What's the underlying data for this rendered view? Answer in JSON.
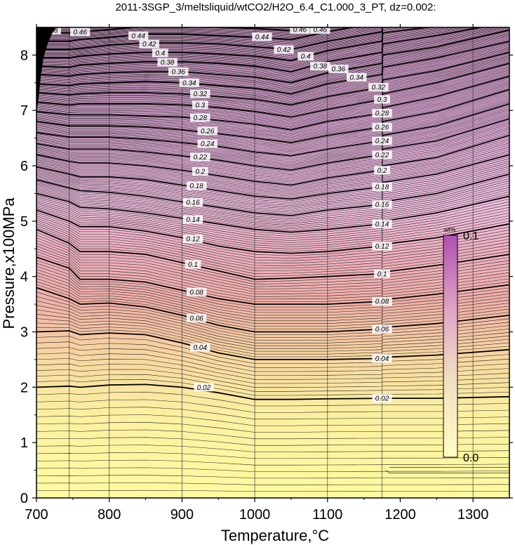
{
  "chart_data": {
    "type": "contour",
    "title": "2011-3SGP_3/meltsliquid/wtCO2/H2O_6.4_C1.000_3_PT, dz=0.002:",
    "xlabel": "Temperature,°C",
    "ylabel": "Pressure,x100MPa",
    "xlim": [
      700,
      1350
    ],
    "ylim": [
      0,
      8.5
    ],
    "xticks": [
      700,
      800,
      900,
      1000,
      1100,
      1200,
      1300
    ],
    "yticks": [
      0,
      1,
      2,
      3,
      4,
      5,
      6,
      7,
      8
    ],
    "xtick_labels": [
      "700",
      "800",
      "900",
      "1000",
      "1100",
      "1200",
      "1300"
    ],
    "ytick_labels": [
      "0",
      "1",
      "2",
      "3",
      "4",
      "5",
      "6",
      "7",
      "8"
    ],
    "grid": true,
    "grid_x": [
      745,
      800,
      900,
      1000,
      1100,
      1175,
      1300
    ],
    "contour_interval": 0.002,
    "major_interval": 0.02,
    "colorbar": {
      "title": "wt%",
      "min_label": "0.0",
      "max_label": "0.1",
      "range": [
        0.0,
        0.1
      ],
      "colors": [
        "#fffaa0",
        "#f2b8a8",
        "#d090c0",
        "#b060b0"
      ]
    },
    "profile_T": [
      700,
      745,
      760,
      800,
      850,
      900,
      950,
      1000,
      1050,
      1100,
      1175,
      1176,
      1250,
      1350
    ],
    "iso_lines": [
      {
        "value": 0.02,
        "P": [
          2.0,
          2.02,
          2.0,
          2.04,
          2.05,
          2.0,
          1.9,
          1.78,
          1.78,
          1.79,
          1.8,
          1.8,
          1.8,
          1.83
        ]
      },
      {
        "value": 0.04,
        "P": [
          3.0,
          3.02,
          2.95,
          2.98,
          2.95,
          2.8,
          2.62,
          2.5,
          2.5,
          2.5,
          2.52,
          2.54,
          2.58,
          2.68
        ]
      },
      {
        "value": 0.06,
        "P": [
          3.8,
          3.6,
          3.5,
          3.52,
          3.45,
          3.3,
          3.12,
          3.0,
          3.0,
          3.0,
          3.05,
          3.08,
          3.15,
          3.3
        ]
      },
      {
        "value": 0.08,
        "P": [
          4.35,
          4.15,
          3.95,
          3.95,
          3.9,
          3.75,
          3.6,
          3.5,
          3.5,
          3.5,
          3.55,
          3.58,
          3.68,
          3.85
        ]
      },
      {
        "value": 0.1,
        "P": [
          4.85,
          4.6,
          4.45,
          4.45,
          4.4,
          4.25,
          4.1,
          3.95,
          3.97,
          4.0,
          4.05,
          4.08,
          4.2,
          4.4
        ]
      },
      {
        "value": 0.12,
        "P": [
          5.2,
          5.0,
          4.9,
          4.9,
          4.82,
          4.7,
          4.55,
          4.45,
          4.42,
          4.45,
          4.55,
          4.58,
          4.7,
          4.95
        ]
      },
      {
        "value": 0.14,
        "P": [
          5.5,
          5.35,
          5.25,
          5.22,
          5.15,
          5.05,
          4.95,
          4.85,
          4.8,
          4.85,
          4.95,
          5.0,
          5.15,
          5.45
        ]
      },
      {
        "value": 0.16,
        "P": [
          5.75,
          5.6,
          5.55,
          5.52,
          5.45,
          5.35,
          5.25,
          5.15,
          5.1,
          5.2,
          5.3,
          5.35,
          5.5,
          5.85
        ]
      },
      {
        "value": 0.18,
        "P": [
          5.98,
          5.85,
          5.8,
          5.8,
          5.75,
          5.65,
          5.55,
          5.45,
          5.4,
          5.5,
          5.62,
          5.7,
          5.85,
          6.2
        ]
      },
      {
        "value": 0.2,
        "P": [
          6.2,
          6.08,
          6.05,
          6.05,
          6.0,
          5.92,
          5.82,
          5.72,
          5.65,
          5.78,
          5.92,
          6.0,
          6.15,
          6.55
        ]
      },
      {
        "value": 0.22,
        "P": [
          6.4,
          6.3,
          6.3,
          6.3,
          6.25,
          6.18,
          6.1,
          6.0,
          5.92,
          6.05,
          6.2,
          6.3,
          6.45,
          6.85
        ]
      },
      {
        "value": 0.24,
        "P": [
          6.6,
          6.52,
          6.52,
          6.52,
          6.48,
          6.42,
          6.35,
          6.25,
          6.18,
          6.3,
          6.45,
          6.55,
          6.72,
          7.12
        ]
      },
      {
        "value": 0.26,
        "P": [
          6.8,
          6.72,
          6.72,
          6.72,
          6.7,
          6.65,
          6.58,
          6.5,
          6.42,
          6.55,
          6.7,
          6.8,
          6.98,
          7.38
        ]
      },
      {
        "value": 0.28,
        "P": [
          6.98,
          6.92,
          6.92,
          6.92,
          6.9,
          6.88,
          6.82,
          6.75,
          6.65,
          6.8,
          6.95,
          7.05,
          7.25,
          7.62
        ]
      },
      {
        "value": 0.3,
        "P": [
          7.15,
          7.1,
          7.12,
          7.12,
          7.12,
          7.1,
          7.05,
          6.98,
          6.88,
          7.02,
          7.2,
          7.3,
          7.5,
          7.85
        ]
      },
      {
        "value": 0.32,
        "P": [
          7.32,
          7.28,
          7.3,
          7.32,
          7.32,
          7.3,
          7.25,
          7.2,
          7.1,
          7.25,
          7.42,
          7.55,
          7.72,
          8.05
        ]
      },
      {
        "value": 0.34,
        "P": [
          7.48,
          7.45,
          7.48,
          7.5,
          7.52,
          7.5,
          7.45,
          7.4,
          7.3,
          7.48,
          7.65,
          7.78,
          7.95,
          8.25
        ]
      },
      {
        "value": 0.36,
        "P": [
          7.65,
          7.62,
          7.65,
          7.68,
          7.7,
          7.7,
          7.65,
          7.6,
          7.5,
          7.68,
          7.85,
          8.0,
          8.15,
          8.45
        ]
      },
      {
        "value": 0.38,
        "P": [
          7.8,
          7.78,
          7.82,
          7.85,
          7.88,
          7.88,
          7.85,
          7.8,
          7.7,
          7.88,
          8.05,
          8.2,
          8.35,
          8.6
        ]
      },
      {
        "value": 0.4,
        "P": [
          7.95,
          7.95,
          7.98,
          8.02,
          8.05,
          8.05,
          8.02,
          7.98,
          7.9,
          8.08,
          8.25,
          8.4,
          8.52,
          8.75
        ]
      },
      {
        "value": 0.42,
        "P": [
          8.1,
          8.1,
          8.12,
          8.18,
          8.22,
          8.22,
          8.2,
          8.15,
          8.1,
          8.25,
          8.42,
          8.58,
          8.7,
          8.9
        ]
      },
      {
        "value": 0.44,
        "P": [
          8.25,
          8.25,
          8.28,
          8.32,
          8.38,
          8.38,
          8.35,
          8.32,
          8.28,
          8.42,
          8.6,
          8.75,
          8.85,
          9.05
        ]
      },
      {
        "value": 0.46,
        "P": [
          8.4,
          8.4,
          8.42,
          8.46,
          8.52,
          8.52,
          8.5,
          8.48,
          8.44,
          8.58,
          8.75,
          8.9,
          9.0,
          9.2
        ]
      },
      {
        "value": 0.48,
        "P": [
          8.55,
          8.55,
          8.56,
          8.6,
          8.66,
          8.66,
          8.64,
          8.62,
          8.6,
          8.72,
          8.9,
          9.05,
          9.15,
          9.35
        ]
      }
    ],
    "contour_labels": [
      {
        "text": "0.02",
        "T": 930,
        "P": 2.0
      },
      {
        "text": "0.02",
        "T": 1175,
        "P": 1.8
      },
      {
        "text": "0.04",
        "T": 925,
        "P": 2.72
      },
      {
        "text": "0.04",
        "T": 1175,
        "P": 2.52
      },
      {
        "text": "0.06",
        "T": 920,
        "P": 3.25
      },
      {
        "text": "0.06",
        "T": 1175,
        "P": 3.05
      },
      {
        "text": "0.08",
        "T": 920,
        "P": 3.72
      },
      {
        "text": "0.08",
        "T": 1175,
        "P": 3.55
      },
      {
        "text": "0.1",
        "T": 915,
        "P": 4.22
      },
      {
        "text": "0.1",
        "T": 1175,
        "P": 4.05
      },
      {
        "text": "0.12",
        "T": 915,
        "P": 4.68
      },
      {
        "text": "0.12",
        "T": 1175,
        "P": 4.55
      },
      {
        "text": "0.14",
        "T": 915,
        "P": 5.03
      },
      {
        "text": "0.14",
        "T": 1175,
        "P": 4.95
      },
      {
        "text": "0.16",
        "T": 915,
        "P": 5.34
      },
      {
        "text": "0.16",
        "T": 1175,
        "P": 5.3
      },
      {
        "text": "0.18",
        "T": 920,
        "P": 5.64
      },
      {
        "text": "0.18",
        "T": 1175,
        "P": 5.62
      },
      {
        "text": "0.2",
        "T": 925,
        "P": 5.9
      },
      {
        "text": "0.2",
        "T": 1175,
        "P": 5.92
      },
      {
        "text": "0.22",
        "T": 925,
        "P": 6.16
      },
      {
        "text": "0.22",
        "T": 1175,
        "P": 6.2
      },
      {
        "text": "0.24",
        "T": 935,
        "P": 6.4
      },
      {
        "text": "0.24",
        "T": 1175,
        "P": 6.45
      },
      {
        "text": "0.26",
        "T": 935,
        "P": 6.63
      },
      {
        "text": "0.26",
        "T": 1175,
        "P": 6.7
      },
      {
        "text": "0.28",
        "T": 925,
        "P": 6.87
      },
      {
        "text": "0.28",
        "T": 1175,
        "P": 6.95
      },
      {
        "text": "0.3",
        "T": 925,
        "P": 7.1
      },
      {
        "text": "0.3",
        "T": 1175,
        "P": 7.2
      },
      {
        "text": "0.32",
        "T": 925,
        "P": 7.3
      },
      {
        "text": "0.32",
        "T": 1170,
        "P": 7.42
      },
      {
        "text": "0.34",
        "T": 910,
        "P": 7.5
      },
      {
        "text": "0.34",
        "T": 1140,
        "P": 7.6
      },
      {
        "text": "0.36",
        "T": 895,
        "P": 7.7
      },
      {
        "text": "0.36",
        "T": 1115,
        "P": 7.75
      },
      {
        "text": "0.38",
        "T": 880,
        "P": 7.87
      },
      {
        "text": "0.38",
        "T": 1090,
        "P": 7.8
      },
      {
        "text": "0.4",
        "T": 870,
        "P": 8.04
      },
      {
        "text": "0.4",
        "T": 1070,
        "P": 7.98
      },
      {
        "text": "0.42",
        "T": 855,
        "P": 8.2
      },
      {
        "text": "0.42",
        "T": 1040,
        "P": 8.1
      },
      {
        "text": "0.44",
        "T": 840,
        "P": 8.35
      },
      {
        "text": "0.44",
        "T": 1010,
        "P": 8.33
      },
      {
        "text": "0.46",
        "T": 1062,
        "P": 8.46
      },
      {
        "text": "0.46",
        "T": 1090,
        "P": 8.46
      },
      {
        "text": "0.46",
        "T": 760,
        "P": 8.42
      },
      {
        "text": "0.48",
        "T": 720,
        "P": 8.45
      }
    ],
    "bottom_right_contour": {
      "T": [
        1185,
        1350,
        1350,
        1185,
        1180
      ],
      "P": [
        0.55,
        0.55,
        0.45,
        0.45,
        0.5
      ]
    }
  }
}
